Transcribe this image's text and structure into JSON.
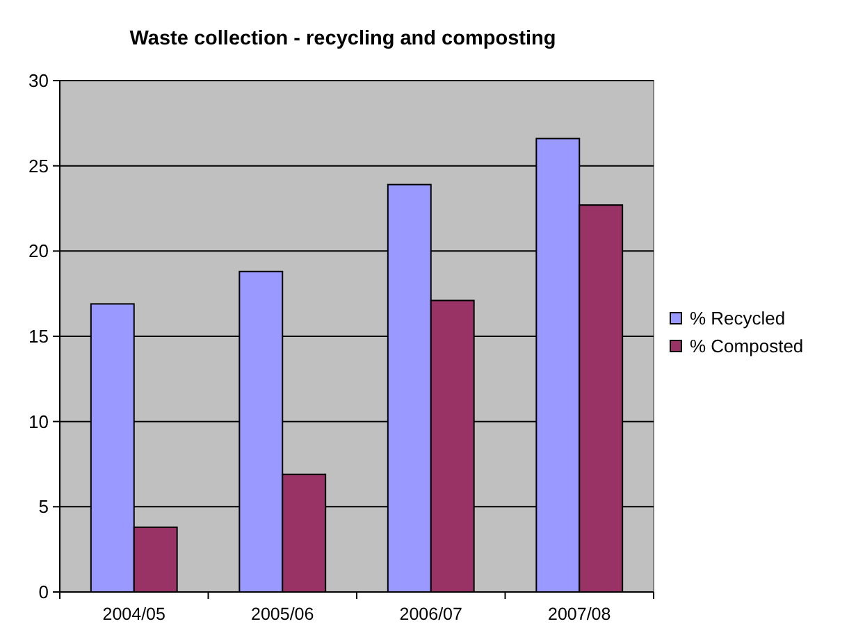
{
  "chart_data": {
    "type": "bar",
    "title": "Waste collection - recycling and composting",
    "categories": [
      "2004/05",
      "2005/06",
      "2006/07",
      "2007/08"
    ],
    "series": [
      {
        "name": "% Recycled",
        "color": "#9999ff",
        "values": [
          16.9,
          18.8,
          23.9,
          26.6
        ]
      },
      {
        "name": "% Composted",
        "color": "#993366",
        "values": [
          3.8,
          6.9,
          17.1,
          22.7
        ]
      }
    ],
    "ylim": [
      0,
      30
    ],
    "yticks": [
      0,
      5,
      10,
      15,
      20,
      25,
      30
    ],
    "grid": "y",
    "legend": "right"
  }
}
